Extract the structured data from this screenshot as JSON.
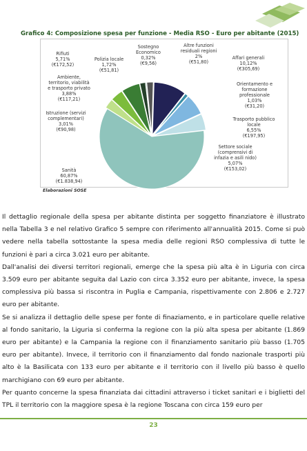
{
  "chart_title": "Grafico 4: Composizione spesa per funzione - Media RSO - Euro per abitante (2015)",
  "source_note": "Elaborazioni SOSE",
  "colors": {
    "Affari generali": "#222255",
    "Orientamento e formazione professionale": "#3a8fa8",
    "Trasporto pubblico locale": "#7fb7e0",
    "Settore sociale": "#bfe0e7",
    "Sanità": "#8fc4bc",
    "Istruzione": "#bfe08a",
    "Ambiente": "#7cbc3c",
    "Rifiuti": "#3a7d34",
    "Polizia locale": "#25402a",
    "Sostegno Economico": "#9bbbb0",
    "Altre funzioni residuali regioni": "#555555"
  },
  "chart_data": {
    "type": "pie",
    "title": "Grafico 4: Composizione spesa per funzione - Media RSO - Euro per abitante (2015)",
    "slices": [
      {
        "name": "Affari generali",
        "pct": 10.12,
        "value": "(€305,69)",
        "label": "Affari generali\n10,12%\n(€305,69)"
      },
      {
        "name": "Orientamento e formazione professionale",
        "pct": 1.03,
        "value": "(€31,20)",
        "label": "Orientamento e\nformazione\nprofessionale\n1,03%\n(€31,20)"
      },
      {
        "name": "Trasporto pubblico locale",
        "pct": 6.55,
        "value": "(€197,95)",
        "label": "Trasporto pubblico\nlocale\n6,55%\n(€197,95)"
      },
      {
        "name": "Settore sociale",
        "pct": 5.07,
        "value": "(€153,02)",
        "label": "Settore sociale\n(comprensivi di\ninfazia e asili nido)\n5,07%\n(€153,02)"
      },
      {
        "name": "Sanità",
        "pct": 60.87,
        "value": "(€1.838,94)",
        "label": "Sanità\n60,87%\n(€1.838,94)"
      },
      {
        "name": "Istruzione",
        "pct": 3.01,
        "value": "(€90,98)",
        "label": "Istruzione (servizi\ncomplementari)\n3,01%\n(€90,98)"
      },
      {
        "name": "Ambiente",
        "pct": 3.88,
        "value": "(€117,21)",
        "label": "Ambiente,\nterritorio, viabilità\ne trasporto privato\n3,88%\n(€117,21)"
      },
      {
        "name": "Rifiuti",
        "pct": 5.71,
        "value": "(€172,52)",
        "label": "Rifiuti\n5,71%\n(€172,52)"
      },
      {
        "name": "Polizia locale",
        "pct": 1.72,
        "value": "(€51,81)",
        "label": "Polizia locale\n1,72%\n(€51,81)"
      },
      {
        "name": "Sostegno Economico",
        "pct": 0.32,
        "value": "(€9,56)",
        "label": "Sostegno\nEconomico\n0,32%\n(€9,56)"
      },
      {
        "name": "Altre funzioni residuali regioni",
        "pct": 2,
        "value": "(€51,80)",
        "label": "Altre funzioni\nresiduali regioni\n2%\n(€51,80)"
      }
    ]
  },
  "paragraphs": [
    "Il dettaglio regionale della spesa per abitante distinta per soggetto finanziatore è illustrato nella Tabella 3 e nel relativo Grafico 5 sempre con riferimento all'annualità 2015. Come si può vedere nella tabella sottostante la spesa media delle regioni RSO complessiva di tutte le funzioni è pari a circa 3.021 euro per abitante.",
    "Dall'analisi dei diversi territori regionali, emerge che la spesa più alta è in Liguria con circa 3.509 euro per abitante seguita dal Lazio con circa 3.352 euro per abitante, invece, la spesa complessiva più bassa si riscontra in Puglia e Campania, rispettivamente con 2.806 e 2.727 euro per abitante.",
    "Se si analizza il dettaglio delle spese per fonte di finaziamento, e in particolare quelle relative al fondo sanitario, la Liguria si conferma la regione con la più alta spesa per abitante (1.869 euro per abitante) e la Campania la regione con il finanziamento sanitario più basso (1.705 euro per abitante). Invece, il territorio con il finanziamento dal fondo nazionale trasporti più alto è la Basilicata con 133 euro per abitante e il territorio con il livello più basso è quello marchigiano con 69 euro per abitante.",
    "Per quanto concerne la spesa finanziata dai cittadini attraverso i ticket sanitari e i biglietti del TPL il territorio con la maggiore spesa è la regione Toscana con circa 159 euro per"
  ],
  "page_number": "23"
}
